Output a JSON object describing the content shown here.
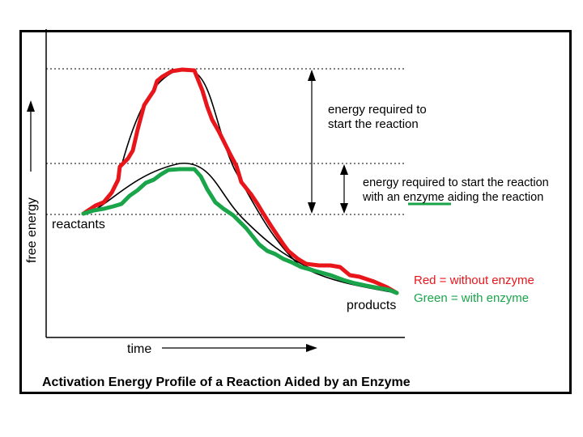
{
  "title": "Activation Energy Profile of a Reaction Aided by an Enzyme",
  "axes": {
    "y_label": "free energy",
    "x_label": "time"
  },
  "labels": {
    "reactants": "reactants",
    "products": "products",
    "energy_without_line1": "energy required to",
    "energy_without_line2": "start the reaction",
    "energy_with_line1": "energy required to start the reaction",
    "energy_with_line2": "with an enzyme aiding the reaction"
  },
  "legend": {
    "red": "Red = without enzyme",
    "green": "Green = with enzyme"
  },
  "colors": {
    "without_enzyme": "#e8161b",
    "with_enzyme": "#1aa54a",
    "guide": "#000000"
  }
}
